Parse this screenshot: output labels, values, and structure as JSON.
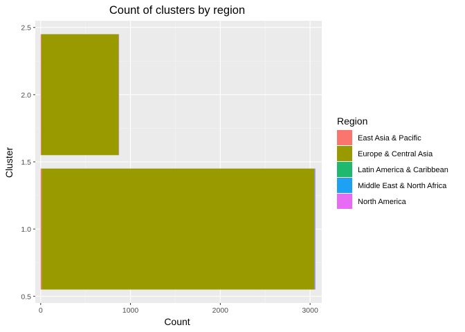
{
  "chart_data": {
    "type": "bar",
    "orientation": "horizontal",
    "stacked": true,
    "title": "Count of clusters by region",
    "xlabel": "Count",
    "ylabel": "Cluster",
    "xlim": [
      -60,
      3130
    ],
    "ylim": [
      0.45,
      2.55
    ],
    "x_ticks": [
      0,
      1000,
      2000,
      3000
    ],
    "x_tick_labels": [
      "0",
      "1000",
      "2000",
      "3000"
    ],
    "y_ticks": [
      0.5,
      1.0,
      1.5,
      2.0,
      2.5
    ],
    "y_tick_labels": [
      "0.5",
      "1.0",
      "1.5",
      "2.0",
      "2.5"
    ],
    "bar_width": 0.9,
    "grid": true,
    "legend_position": "right",
    "legend_title": "Region",
    "categories": [
      1,
      2
    ],
    "series": [
      {
        "name": "East Asia & Pacific",
        "color": "#F8766D",
        "values": [
          12,
          8
        ]
      },
      {
        "name": "Europe & Central Asia",
        "color": "#999900",
        "values": [
          3035,
          860
        ]
      },
      {
        "name": "Latin America & Caribbean",
        "color": "#1FB86E",
        "values": [
          3,
          1
        ]
      },
      {
        "name": "Middle East & North Africa",
        "color": "#1DA1F2",
        "values": [
          4,
          1
        ]
      },
      {
        "name": "North America",
        "color": "#E76BF3",
        "values": [
          6,
          3
        ]
      }
    ],
    "colors": {
      "panel_background": "#EBEBEB",
      "grid_major": "#FFFFFF"
    }
  }
}
